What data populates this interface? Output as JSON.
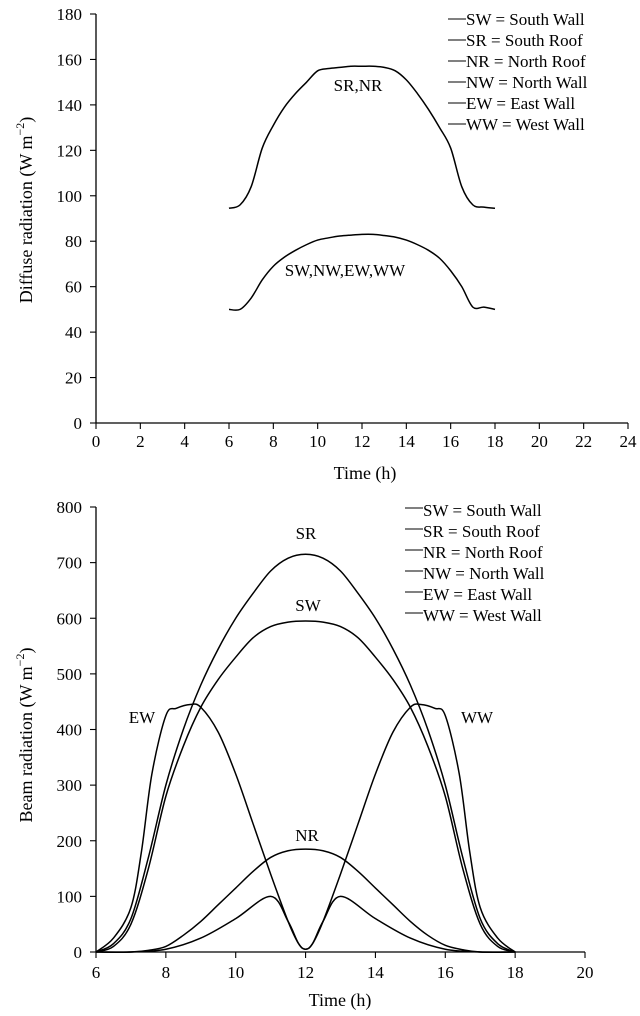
{
  "chart_data": [
    {
      "type": "line",
      "xlabel": "Time (h)",
      "ylabel": "Diffuse radiation (W m",
      "ylabel_sup": "−2",
      "ylabel_end": ")",
      "xlim": [
        0,
        24
      ],
      "ylim": [
        0,
        180
      ],
      "xticks": [
        0,
        2,
        4,
        6,
        8,
        10,
        12,
        14,
        16,
        18,
        20,
        22,
        24
      ],
      "yticks": [
        0,
        20,
        40,
        60,
        80,
        100,
        120,
        140,
        160,
        180
      ],
      "legend_position": "top-right",
      "legend": [
        "SW = South Wall",
        "SR = South Roof",
        "NR = North Roof",
        "NW = North Wall",
        "EW = East Wall",
        "WW = West Wall"
      ],
      "series": [
        {
          "name": "SR,NR",
          "x": [
            6,
            6.5,
            7,
            7.5,
            8,
            8.5,
            9,
            9.5,
            10,
            10.5,
            11,
            11.5,
            12,
            12.5,
            13,
            13.5,
            14,
            14.5,
            15,
            15.5,
            16,
            16.5,
            17,
            17.5,
            18
          ],
          "y": [
            94.5,
            96,
            104,
            121,
            131,
            139,
            145,
            150,
            155,
            156,
            156.5,
            157,
            157,
            157,
            156.5,
            155,
            151,
            145,
            138,
            130,
            121,
            104,
            96,
            95,
            94.5
          ]
        },
        {
          "name": "SW,NW,EW,WW",
          "x": [
            6,
            6.5,
            7,
            7.5,
            8,
            8.5,
            9,
            9.5,
            10,
            10.5,
            11,
            11.5,
            12,
            12.5,
            13,
            13.5,
            14,
            14.5,
            15,
            15.5,
            16,
            16.5,
            17,
            17.5,
            18
          ],
          "y": [
            50,
            50,
            55,
            63,
            69,
            73,
            76,
            78.5,
            80.5,
            81.5,
            82.3,
            82.7,
            83,
            83,
            82.5,
            81.8,
            80.5,
            78.5,
            76,
            72.5,
            67,
            60,
            51,
            51,
            50
          ]
        }
      ],
      "annotations": [
        "SR,NR",
        "SW,NW,EW,WW"
      ]
    },
    {
      "type": "line",
      "xlabel": "Time (h)",
      "ylabel": "Beam radiation (W m",
      "ylabel_sup": "−2",
      "ylabel_end": ")",
      "xlim": [
        6,
        20
      ],
      "ylim": [
        0,
        800
      ],
      "xticks": [
        6,
        8,
        10,
        12,
        14,
        16,
        18,
        20
      ],
      "yticks": [
        0,
        100,
        200,
        300,
        400,
        500,
        600,
        700,
        800
      ],
      "legend_position": "top-right",
      "legend": [
        "SW = South Wall",
        "SR = South Roof",
        "NR = North Roof",
        "NW = North Wall",
        "EW = East Wall",
        "WW = West Wall"
      ],
      "series": [
        {
          "name": "SR",
          "x": [
            6,
            6.5,
            7,
            7.5,
            8,
            8.5,
            9,
            9.5,
            10,
            10.5,
            11,
            11.5,
            12,
            12.5,
            13,
            13.5,
            14,
            14.5,
            15,
            15.5,
            16,
            16.5,
            17,
            17.5,
            18
          ],
          "y": [
            0,
            15,
            60,
            170,
            300,
            400,
            480,
            545,
            600,
            645,
            685,
            708,
            715,
            708,
            685,
            645,
            600,
            545,
            480,
            400,
            300,
            170,
            60,
            15,
            0
          ]
        },
        {
          "name": "SW",
          "x": [
            6,
            6.5,
            7,
            7.5,
            8,
            8.5,
            9,
            9.5,
            10,
            10.5,
            11,
            11.5,
            12,
            12.5,
            13,
            13.5,
            14,
            14.5,
            15,
            15.5,
            16,
            16.5,
            17,
            17.5,
            18
          ],
          "y": [
            0,
            10,
            50,
            150,
            280,
            370,
            440,
            490,
            530,
            565,
            585,
            593,
            595,
            593,
            585,
            565,
            530,
            490,
            440,
            370,
            280,
            150,
            50,
            10,
            0
          ]
        },
        {
          "name": "EW",
          "x": [
            6,
            6.5,
            7,
            7.3,
            7.6,
            8,
            8.3,
            8.7,
            9,
            9.5,
            10,
            10.5,
            11,
            11.5,
            11.8,
            12,
            12.2,
            12.5,
            13,
            14,
            15,
            16,
            17,
            18
          ],
          "y": [
            0,
            25,
            80,
            180,
            320,
            425,
            438,
            445,
            440,
            395,
            320,
            230,
            140,
            55,
            15,
            5,
            15,
            55,
            100,
            60,
            25,
            5,
            0,
            0
          ]
        },
        {
          "name": "WW",
          "x": [
            6,
            7,
            8,
            9,
            10,
            11,
            11.5,
            11.8,
            12,
            12.2,
            12.5,
            13,
            13.5,
            14,
            14.5,
            15,
            15.3,
            15.7,
            16,
            16.4,
            16.7,
            17,
            17.5,
            18
          ],
          "y": [
            0,
            0,
            5,
            25,
            60,
            100,
            55,
            15,
            5,
            15,
            55,
            140,
            230,
            320,
            395,
            440,
            445,
            438,
            425,
            320,
            180,
            80,
            25,
            0
          ]
        },
        {
          "name": "NR",
          "x": [
            6,
            7,
            7.5,
            8,
            8.5,
            9,
            9.5,
            10,
            10.5,
            11,
            11.5,
            12,
            12.5,
            13,
            13.5,
            14,
            14.5,
            15,
            15.5,
            16,
            16.5,
            17,
            18
          ],
          "y": [
            0,
            0,
            3,
            10,
            30,
            55,
            85,
            115,
            145,
            170,
            182,
            185,
            182,
            170,
            145,
            115,
            85,
            55,
            30,
            12,
            4,
            0,
            0
          ]
        }
      ],
      "annotations": [
        "SR",
        "SW",
        "EW",
        "WW",
        "NR"
      ]
    }
  ]
}
